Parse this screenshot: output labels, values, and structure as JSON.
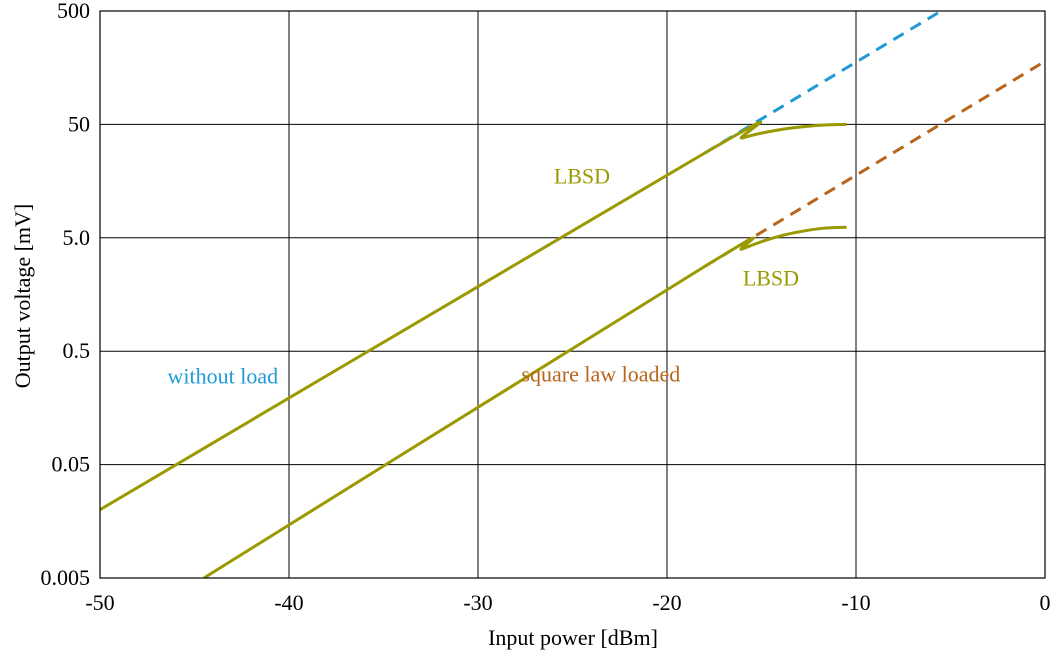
{
  "chart_data": {
    "type": "line",
    "xlabel": "Input power [dBm]",
    "ylabel": "Output voltage [mV]",
    "xlim": [
      -50,
      0
    ],
    "ylim": [
      0.005,
      500
    ],
    "yscale": "log",
    "grid": true,
    "x_ticks": [
      -50,
      -40,
      -30,
      -20,
      -10,
      0
    ],
    "x_tick_labels": [
      "-50",
      "-40",
      "-30",
      "-20",
      "-10",
      "0"
    ],
    "y_ticks": [
      0.005,
      0.05,
      0.5,
      5,
      50,
      500
    ],
    "y_tick_labels": [
      "0.005",
      "0.05",
      "0.5",
      "5.0",
      "50",
      "500"
    ],
    "colors": {
      "lbsd": "#9a9a00",
      "without_load": "#1f9ad6",
      "square_law_loaded": "#b8651a"
    },
    "series": [
      {
        "kind": "lbsd",
        "style": "solid",
        "x": [
          -50,
          -18,
          -16,
          -14,
          -12,
          -10.5
        ],
        "y": [
          0.02,
          28,
          38,
          45,
          49,
          50
        ]
      },
      {
        "kind": "without_load",
        "style": "dashed",
        "x": [
          -18,
          -5.5
        ],
        "y": [
          28,
          500
        ]
      },
      {
        "kind": "lbsd",
        "style": "solid",
        "x": [
          -44.5,
          -18,
          -16,
          -14,
          -12,
          -10.5
        ],
        "y": [
          0.005,
          2.8,
          4.0,
          5.2,
          6.0,
          6.2
        ]
      },
      {
        "kind": "square_law_loaded",
        "style": "dashed",
        "x": [
          -18,
          0
        ],
        "y": [
          2.8,
          180
        ]
      }
    ],
    "annotations": [
      {
        "text": "LBSD",
        "x": -24.5,
        "y": 15,
        "color": "lbsd"
      },
      {
        "text": "LBSD",
        "x": -14.5,
        "y": 1.9,
        "color": "lbsd"
      },
      {
        "text": "without load",
        "x": -43.5,
        "y": 0.26,
        "color": "without_load"
      },
      {
        "text": "square law loaded",
        "x": -23.5,
        "y": 0.27,
        "color": "square_law_loaded"
      }
    ]
  }
}
